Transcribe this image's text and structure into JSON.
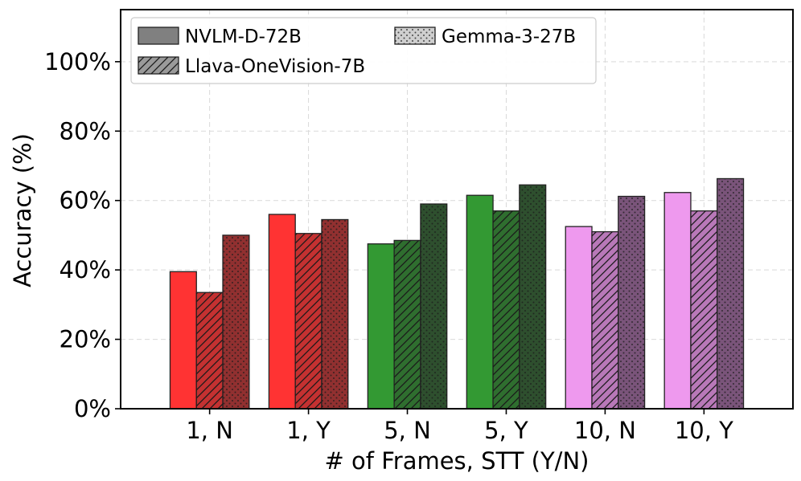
{
  "chart_data": {
    "type": "bar",
    "categories": [
      "1, N",
      "1, Y",
      "5, N",
      "5, Y",
      "10, N",
      "10, Y"
    ],
    "series": [
      {
        "name": "NVLM-D-72B",
        "pattern": "solid",
        "values": [
          39.5,
          56.0,
          47.5,
          61.5,
          52.5,
          62.3
        ]
      },
      {
        "name": "Llava-OneVision-7B",
        "pattern": "hatch",
        "values": [
          33.5,
          50.5,
          48.5,
          57.0,
          51.0,
          57.0
        ]
      },
      {
        "name": "Gemma-3-27B",
        "pattern": "dots",
        "values": [
          50.0,
          54.5,
          59.0,
          64.5,
          61.2,
          66.3
        ]
      }
    ],
    "group_colors": {
      "1, N": [
        "#ff3333",
        "#c43131",
        "#913030"
      ],
      "1, Y": [
        "#ff3333",
        "#c43131",
        "#913030"
      ],
      "5, N": [
        "#339933",
        "#2f6e2f",
        "#2e4f2e"
      ],
      "5, Y": [
        "#339933",
        "#2f6e2f",
        "#2e4f2e"
      ],
      "10, N": [
        "#ee99ee",
        "#b878b8",
        "#7a547a"
      ],
      "10, Y": [
        "#ee99ee",
        "#b878b8",
        "#7a547a"
      ]
    },
    "legend_colors": [
      "#808080",
      "#9a9a9a",
      "#cfcfcf"
    ],
    "title": "",
    "xlabel": "# of Frames, STT (Y/N)",
    "ylabel": "Accuracy (%)",
    "ylim": [
      0,
      115
    ],
    "yticks": [
      0,
      20,
      40,
      60,
      80,
      100
    ],
    "ytick_labels": [
      "0%",
      "20%",
      "40%",
      "60%",
      "80%",
      "100%"
    ],
    "grid": true,
    "legend_position": "top-left",
    "legend_columns": 2
  }
}
